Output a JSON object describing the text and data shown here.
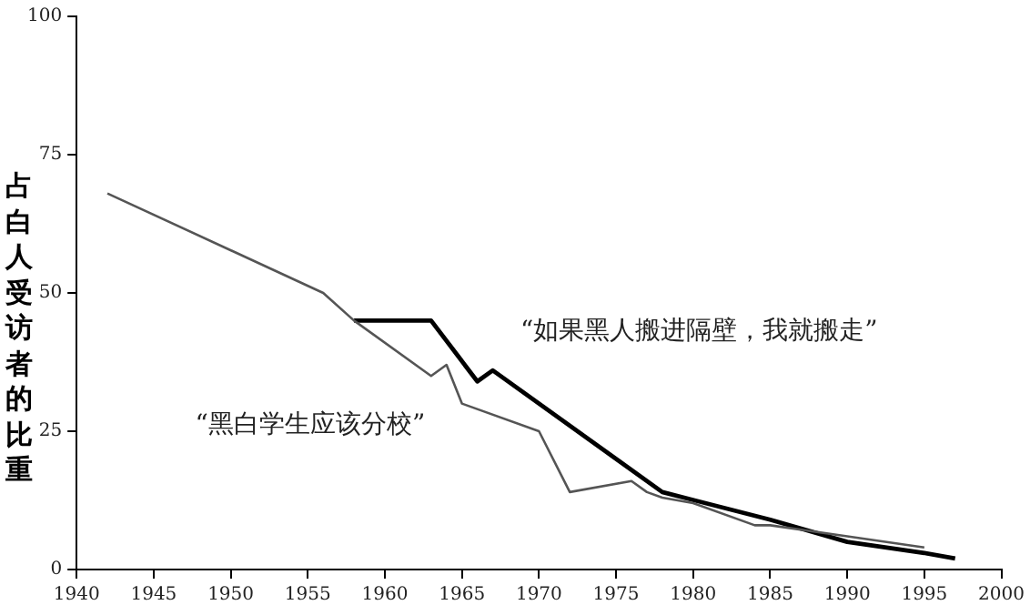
{
  "chart_data": {
    "type": "line",
    "ylabel": "占白人受访者的比重",
    "xlim": [
      1940,
      2000
    ],
    "xticks": [
      1940,
      1945,
      1950,
      1955,
      1960,
      1965,
      1970,
      1975,
      1980,
      1985,
      1990,
      1995,
      2000
    ],
    "ylim": [
      0,
      100
    ],
    "yticks": [
      0,
      25,
      50,
      75,
      100
    ],
    "grid": false,
    "legend": false,
    "marker": "none",
    "line_style": "solid",
    "series": [
      {
        "name": "“黑白学生应该分校”",
        "color": "#555555",
        "x": [
          1942,
          1956,
          1958,
          1963,
          1964,
          1965,
          1970,
          1972,
          1976,
          1977,
          1978,
          1980,
          1984,
          1985,
          1990,
          1995
        ],
        "values": [
          68,
          50,
          45,
          35,
          37,
          30,
          25,
          14,
          16,
          14,
          13,
          12,
          8,
          8,
          6,
          4
        ]
      },
      {
        "name": "“如果黑人搬进隔壁，我就搬走”",
        "color": "#000000",
        "x": [
          1958,
          1963,
          1966,
          1967,
          1978,
          1985,
          1990,
          1995,
          1997
        ],
        "values": [
          45,
          45,
          34,
          36,
          14,
          9,
          5,
          3,
          2
        ]
      }
    ]
  }
}
